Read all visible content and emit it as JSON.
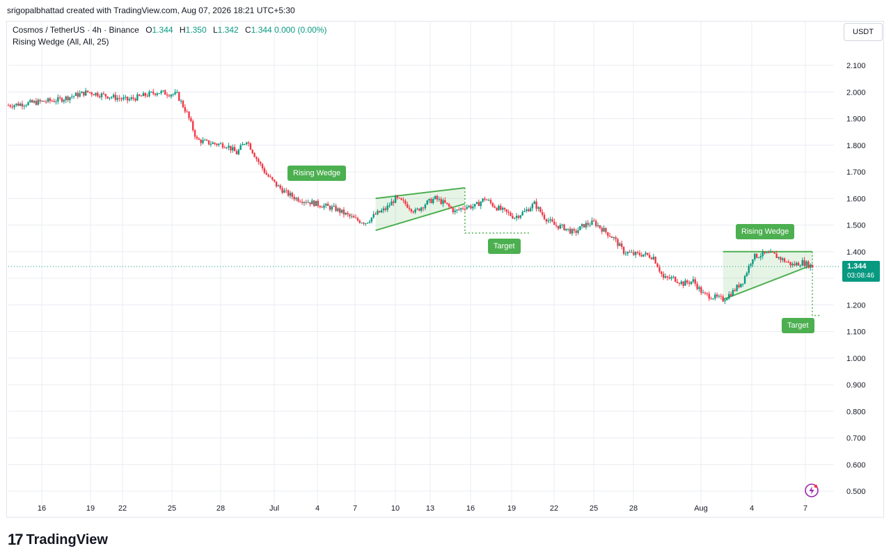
{
  "credit": "srigopalbhattad created with TradingView.com, Aug 07, 2026 18:21 UTC+5:30",
  "legend": {
    "symbol": "Cosmos / TetherUS · 4h · Binance",
    "o_key": "O",
    "o_val": "1.344",
    "h_key": "H",
    "h_val": "1.350",
    "l_key": "L",
    "l_val": "1.342",
    "c_key": "C",
    "c_val": "1.344",
    "change": "0.000 (0.00%)",
    "indicator": "Rising Wedge (All, All, 25)"
  },
  "currency": "USDT",
  "price_tag": {
    "price": "1.344",
    "countdown": "03:08:46"
  },
  "annotations": {
    "wedge1_label": "Rising Wedge",
    "target1_label": "Target",
    "wedge2_label": "Rising Wedge",
    "target2_label": "Target"
  },
  "brand": {
    "name": "TradingView",
    "logo": "tradingview-logo-icon"
  },
  "colors": {
    "up": "#089981",
    "down": "#f23645",
    "pattern": "#4caf50",
    "grid": "#e9ecf2"
  },
  "chart_data": {
    "type": "candlestick",
    "symbol": "Cosmos / TetherUS",
    "interval": "4h",
    "exchange": "Binance",
    "y_ticks": [
      "0.500",
      "0.600",
      "0.700",
      "0.800",
      "0.900",
      "1.000",
      "1.100",
      "1.200",
      "1.300",
      "1.400",
      "1.500",
      "1.600",
      "1.700",
      "1.800",
      "1.900",
      "2.000",
      "2.100"
    ],
    "ylim": [
      0.47,
      2.17
    ],
    "x_ticks": [
      "16",
      "19",
      "22",
      "25",
      "28",
      "Jul",
      "4",
      "7",
      "10",
      "13",
      "16",
      "19",
      "22",
      "25",
      "28",
      "Aug",
      "4",
      "7"
    ],
    "last_price": 1.344,
    "grid": true,
    "close_path": [
      [
        0,
        1.95
      ],
      [
        5,
        1.97
      ],
      [
        8,
        2.0
      ],
      [
        12,
        1.97
      ],
      [
        15,
        2.0
      ],
      [
        17,
        1.99
      ],
      [
        18,
        1.92
      ],
      [
        19,
        1.82
      ],
      [
        20,
        1.81
      ],
      [
        22,
        1.8
      ],
      [
        23,
        1.77
      ],
      [
        24,
        1.82
      ],
      [
        25,
        1.75
      ],
      [
        26,
        1.69
      ],
      [
        27,
        1.65
      ],
      [
        28,
        1.62
      ],
      [
        29,
        1.6
      ],
      [
        31,
        1.58
      ],
      [
        33,
        1.56
      ],
      [
        35,
        1.52
      ],
      [
        36,
        1.51
      ],
      [
        37,
        1.54
      ],
      [
        38,
        1.56
      ],
      [
        39,
        1.6
      ],
      [
        40,
        1.58
      ],
      [
        41,
        1.55
      ],
      [
        42,
        1.58
      ],
      [
        43,
        1.6
      ],
      [
        44,
        1.58
      ],
      [
        45,
        1.55
      ],
      [
        46,
        1.57
      ],
      [
        47,
        1.57
      ],
      [
        48,
        1.6
      ],
      [
        49,
        1.57
      ],
      [
        50,
        1.55
      ],
      [
        51,
        1.53
      ],
      [
        52,
        1.55
      ],
      [
        53,
        1.58
      ],
      [
        54,
        1.53
      ],
      [
        55,
        1.5
      ],
      [
        56,
        1.49
      ],
      [
        57,
        1.47
      ],
      [
        58,
        1.5
      ],
      [
        59,
        1.51
      ],
      [
        60,
        1.48
      ],
      [
        61,
        1.45
      ],
      [
        62,
        1.4
      ],
      [
        63,
        1.39
      ],
      [
        64,
        1.39
      ],
      [
        65,
        1.38
      ],
      [
        66,
        1.3
      ],
      [
        67,
        1.3
      ],
      [
        68,
        1.28
      ],
      [
        69,
        1.29
      ],
      [
        70,
        1.24
      ],
      [
        71,
        1.23
      ],
      [
        72,
        1.22
      ],
      [
        73,
        1.25
      ],
      [
        74,
        1.29
      ],
      [
        75,
        1.38
      ],
      [
        76,
        1.39
      ],
      [
        77,
        1.39
      ],
      [
        78,
        1.37
      ],
      [
        79,
        1.35
      ],
      [
        80,
        1.36
      ],
      [
        81,
        1.344
      ]
    ],
    "patterns": [
      {
        "name": "Rising Wedge",
        "upper_line": [
          [
            37,
            1.6
          ],
          [
            46,
            1.64
          ]
        ],
        "lower_line": [
          [
            37,
            1.48
          ],
          [
            46,
            1.58
          ]
        ],
        "target": 1.47
      },
      {
        "name": "Rising Wedge",
        "upper_line": [
          [
            72,
            1.4
          ],
          [
            81,
            1.4
          ]
        ],
        "lower_line": [
          [
            72,
            1.22
          ],
          [
            81,
            1.35
          ]
        ],
        "target": 1.16
      }
    ]
  }
}
